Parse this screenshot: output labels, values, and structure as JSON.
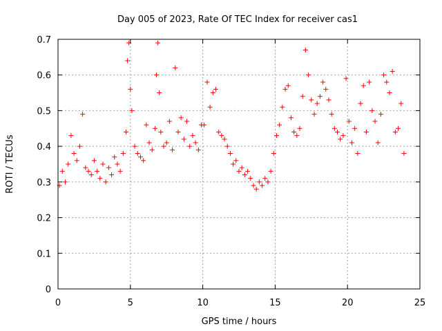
{
  "chart_data": {
    "type": "scatter",
    "title": "Day 005 of 2023, Rate Of TEC Index for receiver cas1",
    "xlabel": "GPS time / hours",
    "ylabel": "ROTI / TECUs",
    "xlim": [
      0,
      25
    ],
    "ylim": [
      0,
      0.7
    ],
    "xticks": [
      "0",
      "5",
      "10",
      "15",
      "20",
      "25"
    ],
    "yticks": [
      "0",
      "0.1",
      "0.2",
      "0.3",
      "0.4",
      "0.5",
      "0.6",
      "0.7"
    ],
    "grid": true,
    "marker": "+",
    "color": "#ff0000",
    "series": [
      {
        "x": [
          0.1,
          0.3,
          0.5,
          0.7,
          0.9,
          1.1,
          1.3,
          1.5,
          1.7,
          1.9,
          2.1,
          2.3,
          2.5,
          2.7,
          2.9,
          3.1,
          3.3,
          3.5,
          3.7,
          3.9,
          4.1,
          4.3,
          4.5,
          4.7,
          4.8,
          4.9,
          5.0,
          5.1,
          5.3,
          5.5,
          5.7,
          5.9,
          6.1,
          6.3,
          6.5,
          6.7,
          6.8,
          6.9,
          7.0,
          7.1,
          7.3,
          7.5,
          7.7,
          7.9,
          8.1,
          8.3,
          8.5,
          8.7,
          8.9,
          9.1,
          9.3,
          9.5,
          9.7,
          9.9,
          10.1,
          10.3,
          10.5,
          10.7,
          10.9,
          11.1,
          11.3,
          11.5,
          11.7,
          11.9,
          12.1,
          12.3,
          12.5,
          12.7,
          12.9,
          13.1,
          13.3,
          13.5,
          13.7,
          13.9,
          14.1,
          14.3,
          14.5,
          14.7,
          14.9,
          15.1,
          15.3,
          15.5,
          15.7,
          15.9,
          16.1,
          16.3,
          16.5,
          16.7,
          16.9,
          17.1,
          17.3,
          17.5,
          17.7,
          17.9,
          18.1,
          18.3,
          18.5,
          18.7,
          18.9,
          19.1,
          19.3,
          19.5,
          19.7,
          19.9,
          20.1,
          20.3,
          20.5,
          20.7,
          20.9,
          21.1,
          21.3,
          21.5,
          21.7,
          21.9,
          22.1,
          22.3,
          22.5,
          22.7,
          22.9,
          23.1,
          23.3,
          23.5,
          23.7,
          23.9
        ],
        "y": [
          0.29,
          0.33,
          0.3,
          0.35,
          0.43,
          0.38,
          0.36,
          0.4,
          0.49,
          0.34,
          0.33,
          0.32,
          0.36,
          0.33,
          0.31,
          0.35,
          0.3,
          0.34,
          0.32,
          0.37,
          0.35,
          0.33,
          0.38,
          0.44,
          0.64,
          0.69,
          0.56,
          0.5,
          0.4,
          0.38,
          0.37,
          0.36,
          0.46,
          0.41,
          0.39,
          0.45,
          0.6,
          0.69,
          0.55,
          0.44,
          0.4,
          0.41,
          0.47,
          0.39,
          0.62,
          0.44,
          0.48,
          0.42,
          0.47,
          0.4,
          0.43,
          0.41,
          0.39,
          0.46,
          0.46,
          0.58,
          0.51,
          0.55,
          0.56,
          0.44,
          0.43,
          0.42,
          0.4,
          0.38,
          0.35,
          0.36,
          0.33,
          0.34,
          0.32,
          0.33,
          0.31,
          0.29,
          0.28,
          0.3,
          0.29,
          0.31,
          0.3,
          0.33,
          0.38,
          0.43,
          0.46,
          0.51,
          0.56,
          0.57,
          0.48,
          0.44,
          0.43,
          0.45,
          0.54,
          0.67,
          0.6,
          0.53,
          0.49,
          0.52,
          0.54,
          0.58,
          0.56,
          0.53,
          0.49,
          0.45,
          0.44,
          0.42,
          0.43,
          0.59,
          0.47,
          0.41,
          0.45,
          0.38,
          0.52,
          0.57,
          0.44,
          0.58,
          0.5,
          0.47,
          0.41,
          0.49,
          0.6,
          0.58,
          0.55,
          0.61,
          0.44,
          0.45,
          0.52,
          0.38
        ]
      }
    ]
  }
}
